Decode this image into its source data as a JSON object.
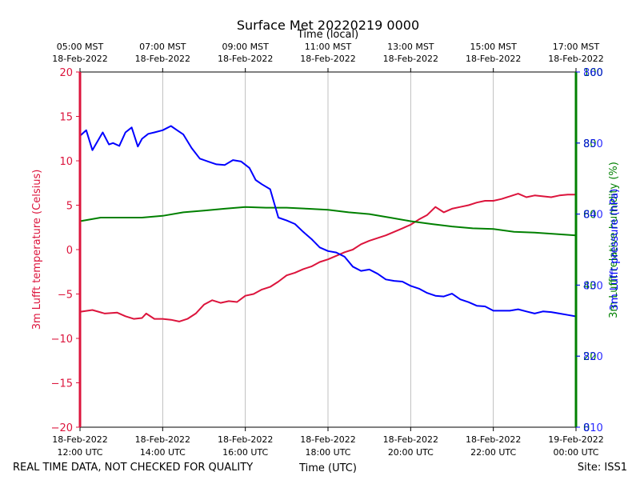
{
  "chart_data": {
    "type": "line",
    "title": "Surface Met 20220219 0000",
    "xlabel": "Time (UTC)",
    "x2label": "Time (local)",
    "footer_left": "REAL TIME DATA, NOT CHECKED FOR QUALITY",
    "footer_right": "Site: ISS1",
    "x_range_hours_utc": [
      12,
      24
    ],
    "x_ticks_utc": [
      {
        "h": 12,
        "line1": "18-Feb-2022",
        "line2": "12:00 UTC"
      },
      {
        "h": 14,
        "line1": "18-Feb-2022",
        "line2": "14:00 UTC"
      },
      {
        "h": 16,
        "line1": "18-Feb-2022",
        "line2": "16:00 UTC"
      },
      {
        "h": 18,
        "line1": "18-Feb-2022",
        "line2": "18:00 UTC"
      },
      {
        "h": 20,
        "line1": "18-Feb-2022",
        "line2": "20:00 UTC"
      },
      {
        "h": 22,
        "line1": "18-Feb-2022",
        "line2": "22:00 UTC"
      },
      {
        "h": 24,
        "line1": "19-Feb-2022",
        "line2": "00:00 UTC"
      }
    ],
    "x_ticks_local": [
      {
        "h": 12,
        "line1": "05:00 MST",
        "line2": "18-Feb-2022"
      },
      {
        "h": 14,
        "line1": "07:00 MST",
        "line2": "18-Feb-2022"
      },
      {
        "h": 16,
        "line1": "09:00 MST",
        "line2": "18-Feb-2022"
      },
      {
        "h": 18,
        "line1": "11:00 MST",
        "line2": "18-Feb-2022"
      },
      {
        "h": 20,
        "line1": "13:00 MST",
        "line2": "18-Feb-2022"
      },
      {
        "h": 22,
        "line1": "15:00 MST",
        "line2": "18-Feb-2022"
      },
      {
        "h": 24,
        "line1": "17:00 MST",
        "line2": "18-Feb-2022"
      }
    ],
    "axes": {
      "left": {
        "label": "3m Lufft temperature (Celsius)",
        "color": "#dc143c",
        "ylim": [
          -20,
          20
        ],
        "ticks": [
          -20,
          -15,
          -10,
          -5,
          0,
          5,
          10,
          15,
          20
        ],
        "tick_labels": [
          "−20",
          "−15",
          "−10",
          "−5",
          "0",
          "5",
          "10",
          "15",
          "20"
        ]
      },
      "right_humidity": {
        "label": "3m Lufft relative humidity (%)",
        "color": "#008000",
        "ylim": [
          0,
          100
        ],
        "ticks": [
          0,
          20,
          40,
          60,
          80,
          100
        ],
        "tick_labels": [
          "0",
          "20",
          "40",
          "60",
          "80",
          "100"
        ]
      },
      "right_pressure": {
        "label": "3m Lufft pressure (hPa)",
        "color": "#0000ff",
        "ylim": [
          810,
          860
        ],
        "ticks": [
          810,
          820,
          830,
          840,
          850,
          860
        ],
        "tick_labels": [
          "810",
          "820",
          "830",
          "840",
          "850",
          "860"
        ]
      }
    },
    "series": [
      {
        "name": "3m Lufft temperature",
        "axis": "left",
        "color": "#dc143c",
        "x": [
          12.0,
          12.3,
          12.6,
          12.9,
          13.1,
          13.3,
          13.5,
          13.6,
          13.8,
          14.0,
          14.2,
          14.4,
          14.6,
          14.8,
          15.0,
          15.2,
          15.4,
          15.6,
          15.8,
          16.0,
          16.2,
          16.4,
          16.6,
          16.8,
          17.0,
          17.2,
          17.4,
          17.6,
          17.8,
          18.0,
          18.2,
          18.4,
          18.6,
          18.8,
          19.0,
          19.2,
          19.4,
          19.6,
          19.8,
          20.0,
          20.2,
          20.4,
          20.6,
          20.8,
          21.0,
          21.2,
          21.4,
          21.6,
          21.8,
          22.0,
          22.2,
          22.4,
          22.6,
          22.8,
          23.0,
          23.2,
          23.4,
          23.6,
          23.8,
          24.0
        ],
        "values": [
          -7.0,
          -6.8,
          -7.2,
          -7.1,
          -7.5,
          -7.8,
          -7.7,
          -7.2,
          -7.8,
          -7.8,
          -7.9,
          -8.1,
          -7.8,
          -7.2,
          -6.2,
          -5.7,
          -6.0,
          -5.8,
          -5.9,
          -5.2,
          -5.0,
          -4.5,
          -4.2,
          -3.6,
          -2.9,
          -2.6,
          -2.2,
          -1.9,
          -1.4,
          -1.1,
          -0.7,
          -0.3,
          0.0,
          0.6,
          1.0,
          1.3,
          1.6,
          2.0,
          2.4,
          2.8,
          3.4,
          3.9,
          4.8,
          4.2,
          4.6,
          4.8,
          5.0,
          5.3,
          5.5,
          5.5,
          5.7,
          6.0,
          6.3,
          5.9,
          6.1,
          6.0,
          5.9,
          6.1,
          6.2,
          6.2
        ]
      },
      {
        "name": "3m Lufft relative humidity",
        "axis": "right_humidity",
        "color": "#008000",
        "x": [
          12.0,
          12.5,
          13.0,
          13.5,
          14.0,
          14.5,
          15.0,
          15.5,
          16.0,
          16.5,
          17.0,
          17.5,
          18.0,
          18.5,
          19.0,
          19.5,
          20.0,
          20.5,
          21.0,
          21.5,
          22.0,
          22.5,
          23.0,
          23.5,
          24.0
        ],
        "values": [
          58,
          59,
          59,
          59,
          59.5,
          60.5,
          61,
          61.5,
          62,
          61.8,
          61.8,
          61.5,
          61.2,
          60.5,
          60,
          59,
          58,
          57.2,
          56.5,
          56,
          55.8,
          55,
          54.8,
          54.4,
          54
        ]
      },
      {
        "name": "3m Lufft pressure",
        "axis": "right_pressure",
        "color": "#0000ff",
        "x": [
          12.0,
          12.15,
          12.3,
          12.4,
          12.55,
          12.7,
          12.8,
          12.95,
          13.1,
          13.25,
          13.4,
          13.5,
          13.65,
          13.8,
          14.0,
          14.2,
          14.35,
          14.5,
          14.7,
          14.9,
          15.1,
          15.3,
          15.5,
          15.7,
          15.9,
          16.1,
          16.25,
          16.4,
          16.6,
          16.8,
          17.0,
          17.2,
          17.4,
          17.6,
          17.8,
          18.0,
          18.2,
          18.4,
          18.6,
          18.8,
          19.0,
          19.2,
          19.4,
          19.6,
          19.8,
          20.0,
          20.2,
          20.4,
          20.6,
          20.8,
          21.0,
          21.2,
          21.4,
          21.6,
          21.8,
          22.0,
          22.2,
          22.4,
          22.6,
          22.8,
          23.0,
          23.2,
          23.4,
          23.6,
          23.8,
          24.0
        ],
        "values": [
          851.0,
          851.8,
          849.0,
          850.0,
          851.5,
          849.8,
          850.0,
          849.6,
          851.5,
          852.2,
          849.5,
          850.6,
          851.3,
          851.5,
          851.8,
          852.4,
          851.8,
          851.2,
          849.3,
          847.8,
          847.4,
          847.0,
          846.9,
          847.6,
          847.4,
          846.5,
          844.8,
          844.2,
          843.5,
          839.5,
          839.1,
          838.6,
          837.5,
          836.5,
          835.3,
          834.8,
          834.6,
          834.0,
          832.6,
          832.0,
          832.2,
          831.6,
          830.8,
          830.6,
          830.5,
          829.9,
          829.5,
          828.9,
          828.5,
          828.4,
          828.8,
          828.0,
          827.6,
          827.1,
          827.0,
          826.4,
          826.4,
          826.4,
          826.6,
          826.3,
          826.0,
          826.3,
          826.2,
          826.0,
          825.8,
          825.6
        ]
      }
    ]
  }
}
